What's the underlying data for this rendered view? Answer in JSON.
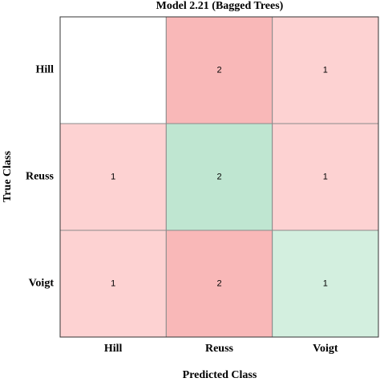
{
  "chart_data": {
    "type": "heatmap",
    "title": "Model 2.21 (Bagged Trees)",
    "x_label": "Predicted Class",
    "y_label": "True Class",
    "rows": [
      "Hill",
      "Reuss",
      "Voigt"
    ],
    "columns": [
      "Hill",
      "Reuss",
      "Voigt"
    ],
    "values": [
      [
        null,
        2,
        1
      ],
      [
        1,
        2,
        1
      ],
      [
        1,
        2,
        1
      ]
    ],
    "colors": [
      [
        "#ffffff",
        "#f9b8b8",
        "#fdd2d2"
      ],
      [
        "#fdd2d2",
        "#bfe6d1",
        "#fdd2d2"
      ],
      [
        "#fdd2d2",
        "#f9b8b8",
        "#d3efdf"
      ]
    ]
  }
}
